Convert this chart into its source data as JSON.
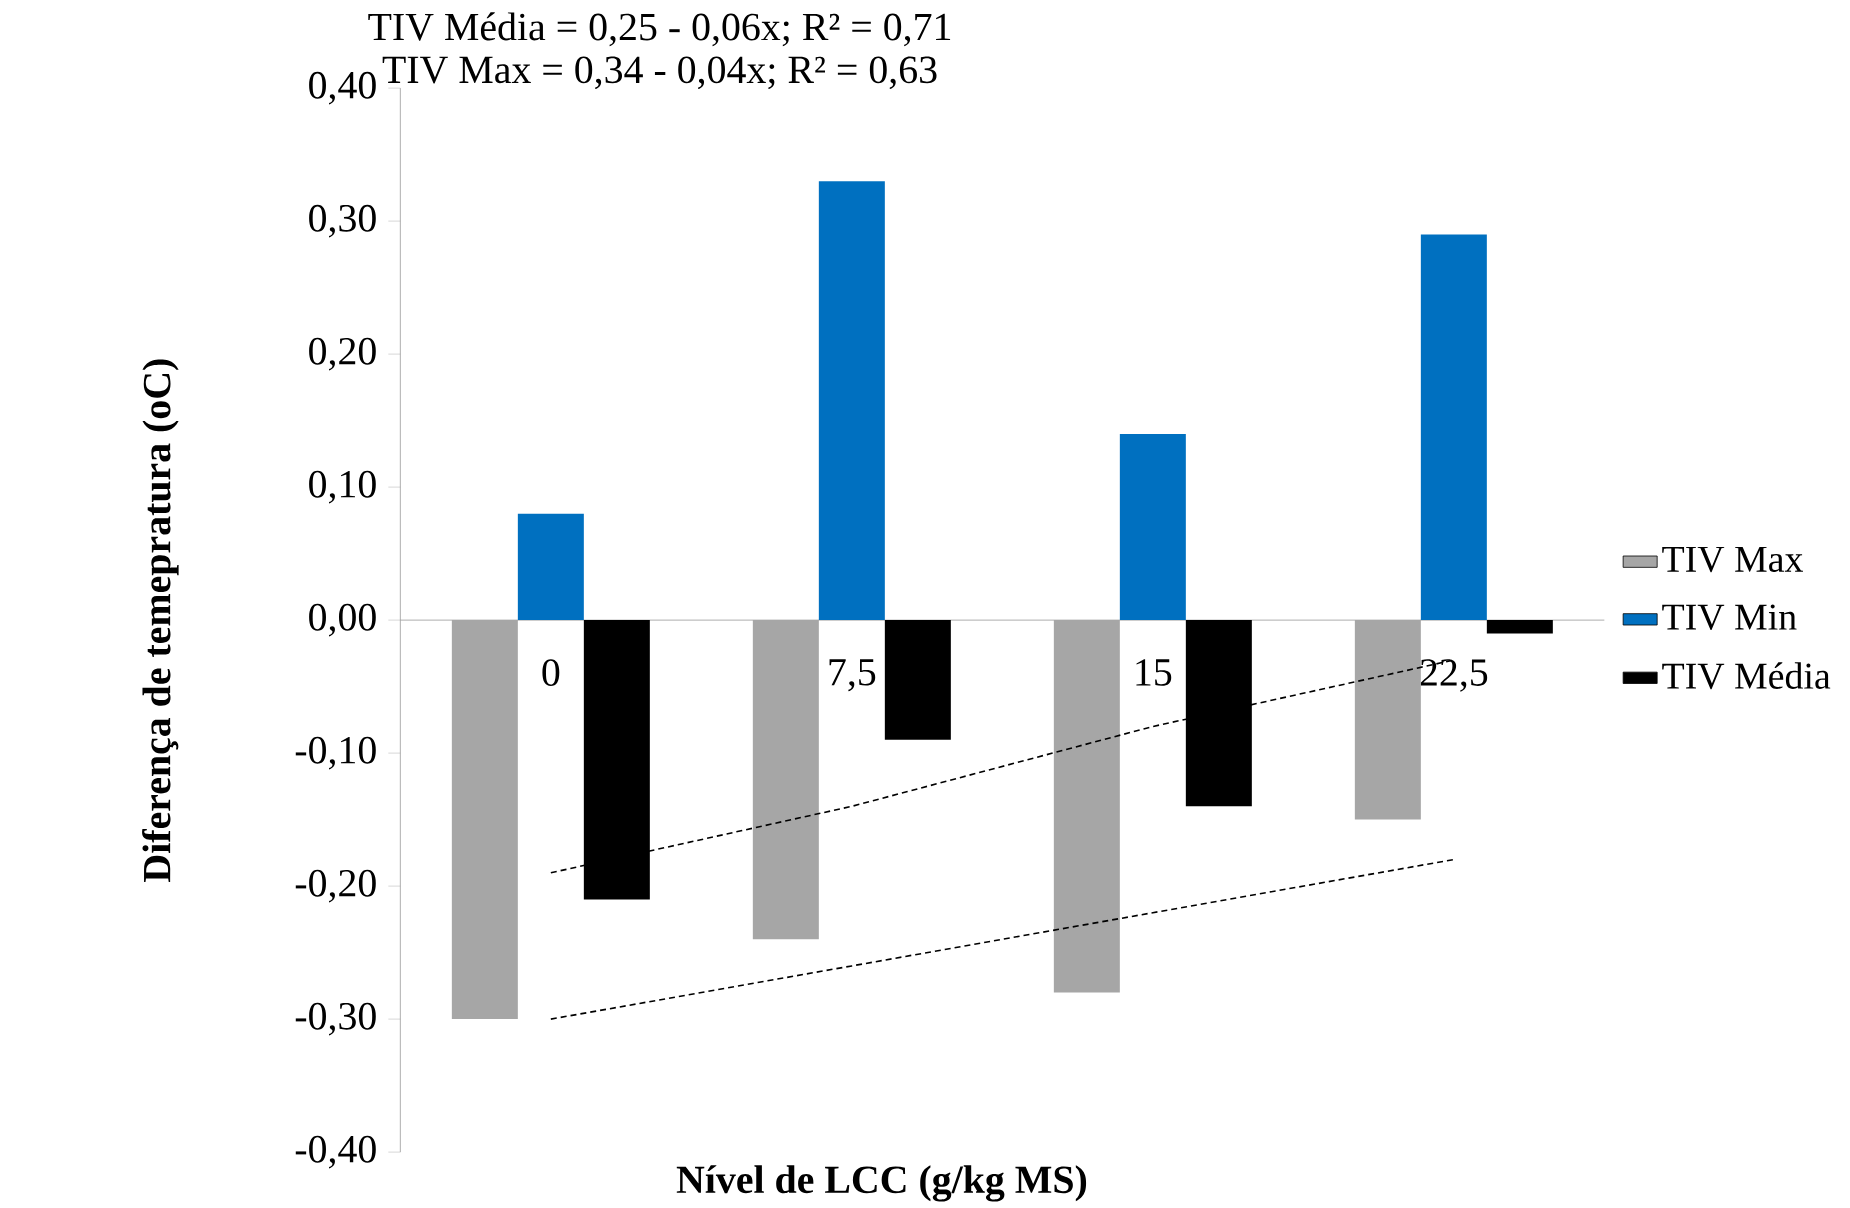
{
  "chart_data": {
    "type": "bar",
    "xlabel": "Nível de LCC (g/kg MS)",
    "ylabel": "Diferença de temepratura (oC)",
    "annotations": [
      "TIV Média  = 0,25 - 0,06x; R² = 0,71",
      "TIV Max = 0,34 - 0,04x; R² = 0,63"
    ],
    "categories": [
      "0",
      "7,5",
      "15",
      "22,5"
    ],
    "series": [
      {
        "name": "TIV Max",
        "color": "#a6a6a6",
        "values": [
          -0.3,
          -0.24,
          -0.28,
          -0.15
        ]
      },
      {
        "name": "TIV Min",
        "color": "#0070c0",
        "values": [
          0.08,
          0.33,
          0.14,
          0.29
        ]
      },
      {
        "name": "TIV Média",
        "color": "#000000",
        "values": [
          -0.21,
          -0.09,
          -0.14,
          -0.01
        ]
      },
      {
        "type": "line",
        "color": "#000000",
        "line_style": "dashed",
        "values": [
          -0.19,
          -0.14,
          -0.08,
          -0.03
        ]
      },
      {
        "type": "line",
        "color": "#000000",
        "line_style": "dashed",
        "values": [
          -0.3,
          -0.26,
          -0.22,
          -0.18
        ]
      }
    ],
    "ylim": [
      -0.4,
      0.4
    ],
    "yticks": [
      {
        "value": -0.4,
        "label": "-0,40"
      },
      {
        "value": -0.3,
        "label": "-0,30"
      },
      {
        "value": -0.2,
        "label": "-0,20"
      },
      {
        "value": -0.1,
        "label": "-0,10"
      },
      {
        "value": 0,
        "label": "0,00"
      },
      {
        "value": 0.1,
        "label": "0,10"
      },
      {
        "value": 0.2,
        "label": "0,20"
      },
      {
        "value": 0.3,
        "label": "0,30"
      },
      {
        "value": 0.4,
        "label": "0,40"
      }
    ],
    "legend": "right"
  }
}
